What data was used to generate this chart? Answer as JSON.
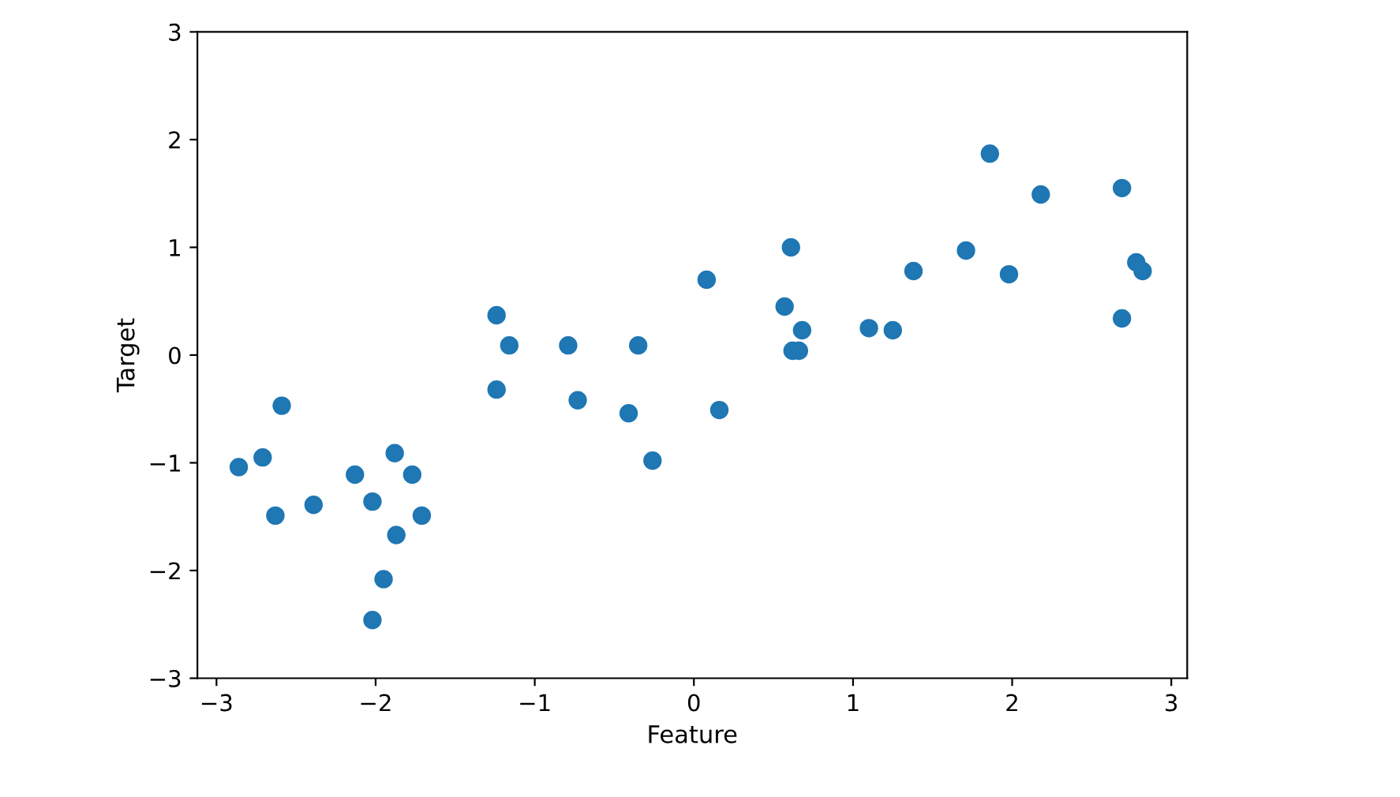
{
  "chart_data": {
    "type": "scatter",
    "xlabel": "Feature",
    "ylabel": "Target",
    "x": [
      -2.86,
      -2.71,
      -2.63,
      -2.59,
      -2.39,
      -2.13,
      -2.02,
      -2.02,
      -1.95,
      -1.88,
      -1.87,
      -1.77,
      -1.71,
      -1.24,
      -1.24,
      -1.16,
      -0.79,
      -0.73,
      -0.41,
      -0.35,
      -0.26,
      0.08,
      0.16,
      0.57,
      0.61,
      0.62,
      0.66,
      0.68,
      1.1,
      1.25,
      1.38,
      1.71,
      1.86,
      1.98,
      2.18,
      2.69,
      2.69,
      2.78,
      2.82
    ],
    "series": [
      {
        "color": "#1f77b4",
        "values": [
          -1.04,
          -0.95,
          -1.49,
          -0.47,
          -1.39,
          -1.11,
          -1.36,
          -2.46,
          -2.08,
          -0.91,
          -1.67,
          -1.11,
          -1.49,
          0.37,
          -0.32,
          0.09,
          0.09,
          -0.42,
          -0.54,
          0.09,
          -0.98,
          0.7,
          -0.51,
          0.45,
          1.0,
          0.04,
          0.04,
          0.23,
          0.25,
          0.23,
          0.78,
          0.97,
          1.87,
          0.75,
          1.49,
          1.55,
          0.34,
          0.86,
          0.78
        ]
      }
    ],
    "xlim": [
      -3.12,
      3.1
    ],
    "ylim": [
      -3,
      3
    ],
    "xticks": [
      -3,
      -2,
      -1,
      0,
      1,
      2,
      3
    ],
    "yticks": [
      -3,
      -2,
      -1,
      0,
      1,
      2,
      3
    ],
    "marker": "circle",
    "grid": false,
    "legend": false
  }
}
